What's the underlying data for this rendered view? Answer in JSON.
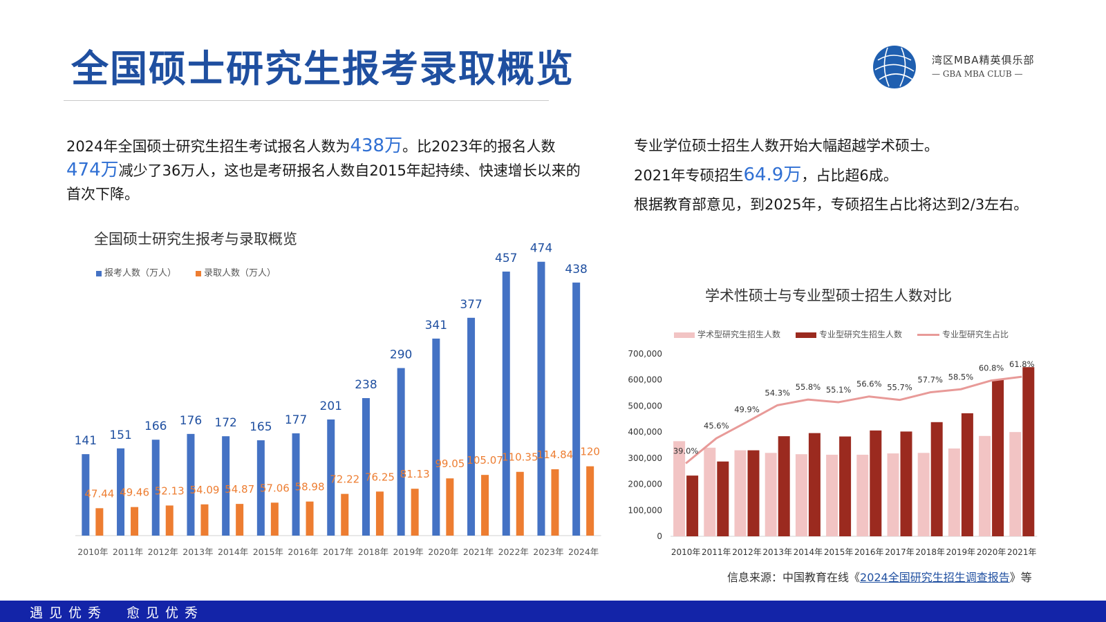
{
  "page": {
    "title": "全国硕士研究生报考录取概览",
    "logo": {
      "name_cn": "湾区MBA精英俱乐部",
      "name_en": "— GBA MBA CLUB —",
      "icon": "globe-logo-icon",
      "color": "#1f5fb0"
    },
    "left_text": {
      "p1": "2024年全国硕士研究生招生考试报名人数为",
      "h1": "438万",
      "p2": "。比2023年的报名人数",
      "h2": "474万",
      "p3": "减少了36万人，这也是考研报名人数自2015年起持续、快速增长以来的首次下降。"
    },
    "right_text": {
      "line1": "专业学位硕士招生人数开始大幅超越学术硕士。",
      "line2a": "2021年专硕招生",
      "line2h": "64.9万",
      "line2b": "，占比超6成。",
      "line3": "根据教育部意见，到2025年，专硕招生占比将达到2/3左右。"
    },
    "source": {
      "label": "信息来源：中国教育在线《",
      "link": "2024全国研究生招生调查报告",
      "suffix": "》等"
    },
    "footer": {
      "slogan": "遇见优秀　愈见优秀",
      "color": "#1324a8"
    }
  },
  "chart_data": [
    {
      "type": "bar",
      "title": "全国硕士研究生报考与录取概览",
      "categories": [
        "2010年",
        "2011年",
        "2012年",
        "2013年",
        "2014年",
        "2015年",
        "2016年",
        "2017年",
        "2018年",
        "2019年",
        "2020年",
        "2021年",
        "2022年",
        "2023年",
        "2024年"
      ],
      "series": [
        {
          "name": "报考人数（万人）",
          "color": "#4472c4",
          "label_color": "#1f4fa0",
          "values": [
            141,
            151,
            166,
            176,
            172,
            165,
            177,
            201,
            238,
            290,
            341,
            377,
            457,
            474,
            438
          ],
          "labels": [
            "141",
            "151",
            "166",
            "176",
            "172",
            "165",
            "177",
            "201",
            "238",
            "290",
            "341",
            "377",
            "457",
            "474",
            "438"
          ]
        },
        {
          "name": "录取人数（万人）",
          "color": "#ed7d31",
          "label_color": "#ed7d31",
          "values": [
            47.44,
            49.46,
            52.13,
            54.09,
            54.87,
            57.06,
            58.98,
            72.22,
            76.25,
            81.13,
            99.05,
            105.07,
            110.35,
            114.84,
            120
          ],
          "labels": [
            "47.44",
            "49.46",
            "52.13",
            "54.09",
            "54.87",
            "57.06",
            "58.98",
            "72.22",
            "76.25",
            "81.13",
            "99.05",
            "105.07",
            "110.35",
            "114.84",
            "120"
          ]
        }
      ],
      "ylim": [
        0,
        500
      ],
      "grid": false,
      "legend": "top-left"
    },
    {
      "type": "bar",
      "title": "学术性硕士与专业型硕士招生人数对比",
      "categories": [
        "2010年",
        "2011年",
        "2012年",
        "2013年",
        "2014年",
        "2015年",
        "2016年",
        "2017年",
        "2018年",
        "2019年",
        "2020年",
        "2021年"
      ],
      "series": [
        {
          "name": "学术型研究生招生人数",
          "type": "bar",
          "color": "#f2c4c4",
          "values": [
            365000,
            340000,
            330000,
            320000,
            315000,
            313000,
            313000,
            318000,
            320000,
            337000,
            385000,
            400000
          ]
        },
        {
          "name": "专业型研究生招生人数",
          "type": "bar",
          "color": "#9b2a1f",
          "values": [
            233000,
            287000,
            330000,
            384000,
            396000,
            383000,
            406000,
            402000,
            438000,
            472000,
            600000,
            649000
          ]
        },
        {
          "name": "专业型研究生占比",
          "type": "line",
          "color": "#e89a98",
          "values": [
            39.0,
            45.6,
            49.9,
            54.3,
            55.8,
            55.1,
            56.6,
            55.7,
            57.7,
            58.5,
            60.8,
            61.8
          ],
          "labels": [
            "39.0%",
            "45.6%",
            "49.9%",
            "54.3%",
            "55.8%",
            "55.1%",
            "56.6%",
            "55.7%",
            "57.7%",
            "58.5%",
            "60.8%",
            "61.8%"
          ]
        }
      ],
      "yticks": [
        "0",
        "100,000",
        "200,000",
        "300,000",
        "400,000",
        "500,000",
        "600,000",
        "700,000"
      ],
      "ylim": [
        0,
        700000
      ],
      "grid": false,
      "legend": "top"
    }
  ]
}
